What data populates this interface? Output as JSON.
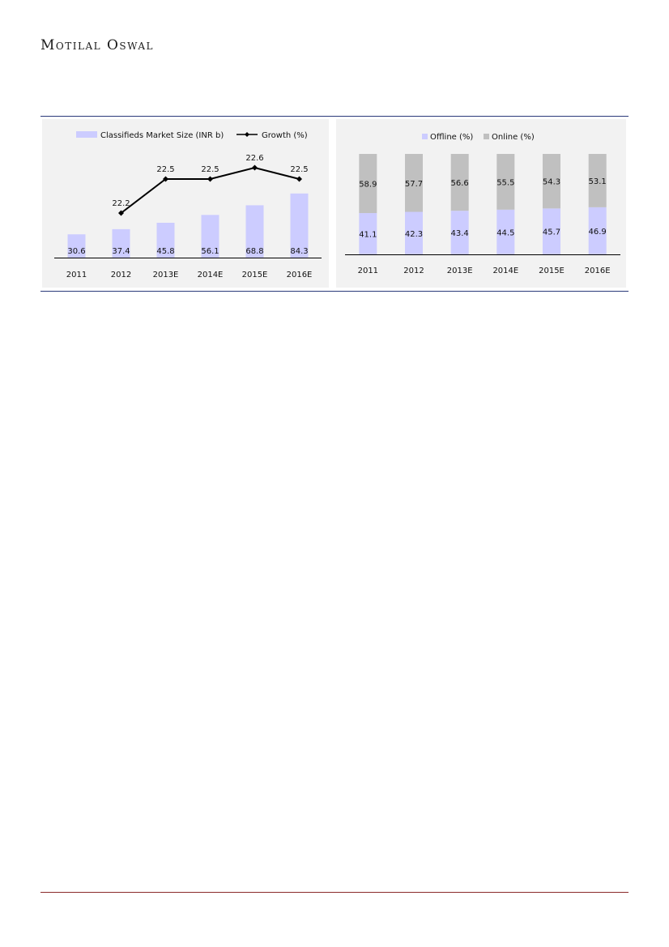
{
  "header": {
    "brand": "Motilal Oswal"
  },
  "chart_data": [
    {
      "type": "bar",
      "categories": [
        "2011",
        "2012",
        "2013E",
        "2014E",
        "2015E",
        "2016E"
      ],
      "series": [
        {
          "name": "Classifieds Market Size (INR b)",
          "type": "bar",
          "values": [
            30.6,
            37.4,
            45.8,
            56.1,
            68.8,
            84.3
          ],
          "color": "#ccccff"
        },
        {
          "name": "Growth (%)",
          "type": "line",
          "values": [
            null,
            22.2,
            22.5,
            22.5,
            22.6,
            22.5
          ],
          "color": "#000000"
        }
      ],
      "legend": "top",
      "grid": false
    },
    {
      "type": "bar",
      "stacked": true,
      "categories": [
        "2011",
        "2012",
        "2013E",
        "2014E",
        "2015E",
        "2016E"
      ],
      "series": [
        {
          "name": "Offline (%)",
          "values": [
            41.1,
            42.3,
            43.4,
            44.5,
            45.7,
            46.9
          ],
          "color": "#ccccff"
        },
        {
          "name": "Online (%)",
          "values": [
            58.9,
            57.7,
            56.6,
            55.5,
            54.3,
            53.1
          ],
          "color": "#c0c0c0"
        }
      ],
      "legend": "top",
      "grid": false
    }
  ]
}
